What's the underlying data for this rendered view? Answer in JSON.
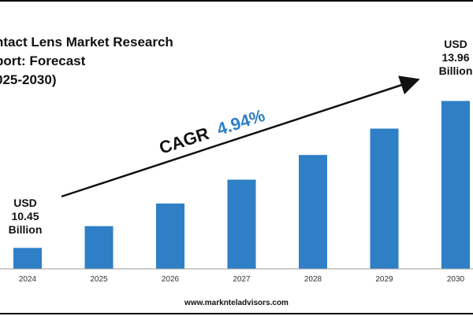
{
  "title_lines": [
    "ntact Lens Market Research",
    "port: Forecast",
    "025-2030)"
  ],
  "callout_start": {
    "lines": [
      "USD",
      "10.45",
      "Billion"
    ]
  },
  "callout_end": {
    "lines": [
      "USD",
      "13.96",
      "Billion"
    ]
  },
  "cagr": {
    "label": "CAGR",
    "value": "4.94%",
    "value_color": "#2e7fc6"
  },
  "footer": "www.marknteladvisors.com",
  "colors": {
    "bar": "#2e7fc6",
    "axis": "#999999",
    "text": "#111111"
  },
  "chart_data": {
    "type": "bar",
    "categories": [
      "2024",
      "2025",
      "2026",
      "2027",
      "2028",
      "2029",
      "2030"
    ],
    "values": [
      10.45,
      10.97,
      11.51,
      12.08,
      12.67,
      13.3,
      13.96
    ],
    "title": "ntact Lens Market Research port: Forecast 025-2030)",
    "xlabel": "",
    "ylabel": "",
    "ylim": [
      9.95,
      14.4
    ],
    "grid": false,
    "legend": "none"
  }
}
